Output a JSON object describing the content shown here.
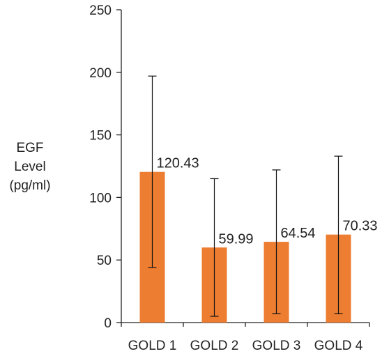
{
  "chart_data": {
    "type": "bar",
    "title": "",
    "xlabel": "",
    "ylabel_lines": [
      "EGF",
      "Level",
      "(pg/ml)"
    ],
    "categories": [
      "GOLD 1",
      "GOLD 2",
      "GOLD 3",
      "GOLD 4"
    ],
    "values": [
      120.43,
      59.99,
      64.54,
      70.33
    ],
    "data_labels": [
      "120.43",
      "59.99",
      "64.54",
      "70.33"
    ],
    "error_bars": [
      {
        "low": 44,
        "high": 197
      },
      {
        "low": 5,
        "high": 115
      },
      {
        "low": 7,
        "high": 122
      },
      {
        "low": 7,
        "high": 133
      }
    ],
    "ylim": [
      0,
      250
    ],
    "y_ticks": [
      0,
      50,
      100,
      150,
      200,
      250
    ],
    "grid": false,
    "legend": "none",
    "bar_color": "#ed7d31",
    "axis_color": "#222222"
  }
}
